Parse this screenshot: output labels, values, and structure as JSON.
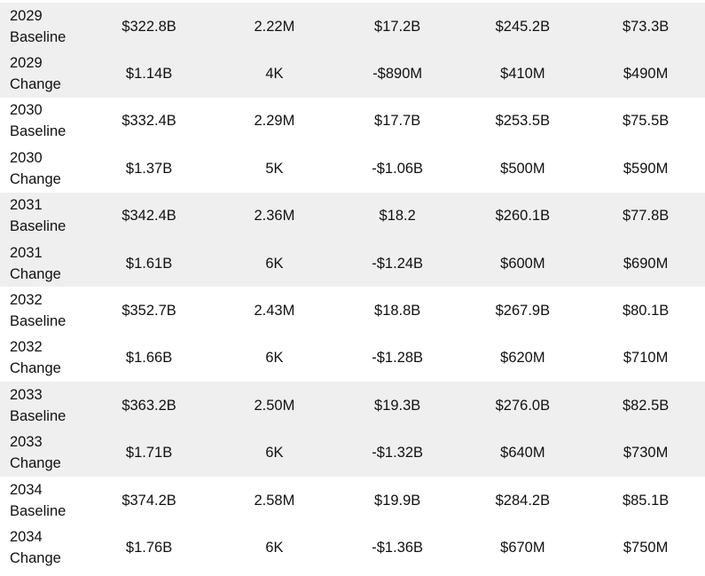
{
  "rows": [
    {
      "year": "2029",
      "kind": "Baseline",
      "values": [
        "$322.8B",
        "2.22M",
        "$17.2B",
        "$245.2B",
        "$73.3B"
      ]
    },
    {
      "year": "2029",
      "kind": "Change",
      "values": [
        "$1.14B",
        "4K",
        "-$890M",
        "$410M",
        "$490M"
      ]
    },
    {
      "year": "2030",
      "kind": "Baseline",
      "values": [
        "$332.4B",
        "2.29M",
        "$17.7B",
        "$253.5B",
        "$75.5B"
      ]
    },
    {
      "year": "2030",
      "kind": "Change",
      "values": [
        "$1.37B",
        "5K",
        "-$1.06B",
        "$500M",
        "$590M"
      ]
    },
    {
      "year": "2031",
      "kind": "Baseline",
      "values": [
        "$342.4B",
        "2.36M",
        "$18.2",
        "$260.1B",
        "$77.8B"
      ]
    },
    {
      "year": "2031",
      "kind": "Change",
      "values": [
        "$1.61B",
        "6K",
        "-$1.24B",
        "$600M",
        "$690M"
      ]
    },
    {
      "year": "2032",
      "kind": "Baseline",
      "values": [
        "$352.7B",
        "2.43M",
        "$18.8B",
        "$267.9B",
        "$80.1B"
      ]
    },
    {
      "year": "2032",
      "kind": "Change",
      "values": [
        "$1.66B",
        "6K",
        "-$1.28B",
        "$620M",
        "$710M"
      ]
    },
    {
      "year": "2033",
      "kind": "Baseline",
      "values": [
        "$363.2B",
        "2.50M",
        "$19.3B",
        "$276.0B",
        "$82.5B"
      ]
    },
    {
      "year": "2033",
      "kind": "Change",
      "values": [
        "$1.71B",
        "6K",
        "-$1.32B",
        "$640M",
        "$730M"
      ]
    },
    {
      "year": "2034",
      "kind": "Baseline",
      "values": [
        "$374.2B",
        "2.58M",
        "$19.9B",
        "$284.2B",
        "$85.1B"
      ]
    },
    {
      "year": "2034",
      "kind": "Change",
      "values": [
        "$1.76B",
        "6K",
        "-$1.36B",
        "$670M",
        "$750M"
      ]
    }
  ],
  "colors": {
    "shaded_row": "#efefef",
    "plain_row": "#ffffff",
    "text": "#111111"
  }
}
